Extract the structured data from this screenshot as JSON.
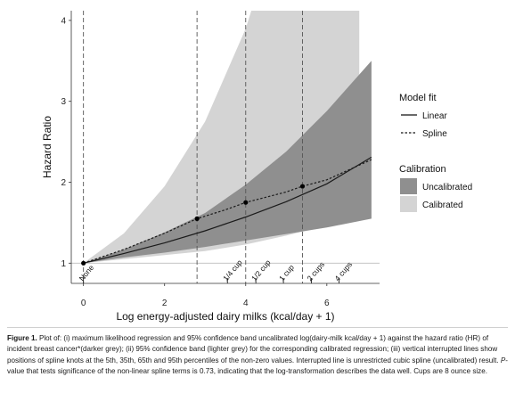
{
  "chart_data": {
    "type": "line",
    "xlabel": "Log energy-adjusted dairy milks (kcal/day + 1)",
    "ylabel": "Hazard Ratio",
    "xlim": [
      -0.3,
      7.3
    ],
    "ylim": [
      0.75,
      4.12
    ],
    "x_ticks": [
      0,
      2,
      4,
      6
    ],
    "y_ticks": [
      1,
      2,
      3,
      4
    ],
    "reference_line_y": 1,
    "spline_knots_x": [
      0,
      2.8,
      4.0,
      5.4
    ],
    "series": [
      {
        "name": "Linear",
        "style": "solid",
        "x": [
          0,
          1,
          2,
          3,
          4,
          5,
          6,
          7.1
        ],
        "y": [
          1.0,
          1.12,
          1.25,
          1.4,
          1.57,
          1.76,
          1.98,
          2.31
        ]
      },
      {
        "name": "Spline",
        "style": "dashed",
        "x": [
          0,
          1,
          2,
          2.8,
          3.5,
          4.0,
          5.0,
          5.4,
          6.0,
          7.1
        ],
        "y": [
          1.0,
          1.17,
          1.37,
          1.55,
          1.66,
          1.75,
          1.88,
          1.95,
          2.03,
          2.28
        ],
        "markers_x": [
          0,
          2.8,
          4.0,
          5.4
        ],
        "markers_y": [
          1.0,
          1.55,
          1.75,
          1.95
        ]
      }
    ],
    "bands": [
      {
        "name": "Calibrated",
        "color": "#d4d4d4",
        "x": [
          0,
          1,
          2,
          3,
          4,
          5,
          5.8,
          6.8
        ],
        "lower": [
          1.0,
          1.05,
          1.1,
          1.15,
          1.23,
          1.34,
          1.44,
          1.53
        ],
        "upper": [
          1.0,
          1.37,
          1.95,
          2.75,
          3.9,
          5.5,
          7.0,
          9.0
        ],
        "x_end": 6.8
      },
      {
        "name": "Uncalibrated",
        "color": "#8f8f8f",
        "x": [
          0,
          1,
          2,
          3,
          4,
          5,
          6,
          7.1
        ],
        "lower": [
          1.0,
          1.07,
          1.13,
          1.2,
          1.28,
          1.36,
          1.44,
          1.55
        ],
        "upper": [
          1.0,
          1.17,
          1.38,
          1.62,
          1.97,
          2.38,
          2.88,
          3.5
        ]
      }
    ],
    "cup_markers": [
      {
        "label": "None",
        "x": 0.0
      },
      {
        "label": "1/4 cup",
        "x": 3.55
      },
      {
        "label": "1/2 cup",
        "x": 4.25
      },
      {
        "label": "1 cup",
        "x": 4.93
      },
      {
        "label": "2 cups",
        "x": 5.62
      },
      {
        "label": "4 cups",
        "x": 6.3
      }
    ],
    "legend": {
      "placement": "right",
      "fit_title": "Model fit",
      "fit_items": [
        {
          "label": "Linear",
          "style": "solid"
        },
        {
          "label": "Spline",
          "style": "dashed"
        }
      ],
      "cal_title": "Calibration",
      "cal_items": [
        {
          "label": "Uncalibrated",
          "color": "#8f8f8f"
        },
        {
          "label": "Calibrated",
          "color": "#d4d4d4"
        }
      ]
    }
  },
  "caption": {
    "label": "Figure 1.",
    "t1": " Plot of: (i) maximum likelihood regression and 95% confidence band uncalibrated log(dairy-milk kcal/day + 1) against the hazard ratio (HR) of incident breast cancer*(darker grey); (ii) 95% confidence band (lighter grey) for the corresponding calibrated regression; (iii) vertical interrupted lines show positions of spline knots at the 5th, 35th, 65th and 95th percentiles of the non-zero values. Interrupted line is unrestricted cubic spline (uncalibrated) result. ",
    "p": "P",
    "t2": "-value that tests significance of the non-linear spline terms is 0.73, indicating that the log-transformation describes the data well. Cups are 8 ounce size."
  }
}
